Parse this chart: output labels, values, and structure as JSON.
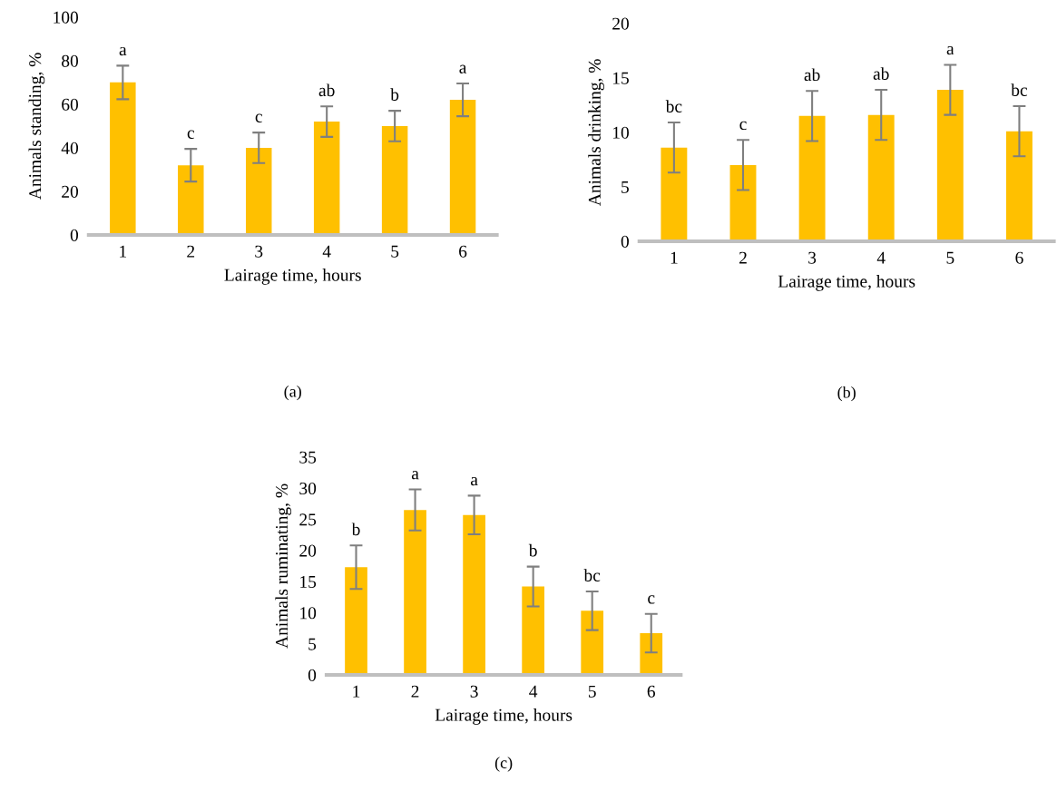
{
  "chart_data": [
    {
      "type": "bar",
      "xlabel": "Lairage time, hours",
      "ylabel": "Animals standing, %",
      "categories": [
        "1",
        "2",
        "3",
        "4",
        "5",
        "6"
      ],
      "values": [
        70,
        32,
        40,
        52,
        50,
        62
      ],
      "errors": [
        7.7,
        7.5,
        7,
        7,
        7,
        7.5
      ],
      "value_labels": [
        "a",
        "c",
        "c",
        "ab",
        "b",
        "a"
      ],
      "color": "#ffc000",
      "ylim": [
        0,
        100
      ],
      "yticks": [
        0,
        20,
        40,
        60,
        80,
        100
      ],
      "grid": false,
      "annotations": [
        "(a)"
      ]
    },
    {
      "type": "bar",
      "xlabel": "Lairage time, hours",
      "ylabel": "Animals drinking, %",
      "categories": [
        "1",
        "2",
        "3",
        "4",
        "5",
        "6"
      ],
      "values": [
        8.6,
        7.0,
        11.5,
        11.6,
        13.9,
        10.1
      ],
      "errors": [
        2.3,
        2.3,
        2.3,
        2.3,
        2.3,
        2.3
      ],
      "value_labels": [
        "bc",
        "c",
        "ab",
        "ab",
        "a",
        "bc"
      ],
      "color": "#ffc000",
      "ylim": [
        0,
        20
      ],
      "yticks": [
        0,
        5,
        10,
        15,
        20
      ],
      "grid": false,
      "annotations": [
        "(b)"
      ]
    },
    {
      "type": "bar",
      "xlabel": "Lairage time, hours",
      "ylabel": "Animals ruminating, %",
      "categories": [
        "1",
        "2",
        "3",
        "4",
        "5",
        "6"
      ],
      "values": [
        17.3,
        26.5,
        25.7,
        14.2,
        10.3,
        6.7
      ],
      "errors": [
        3.5,
        3.3,
        3.1,
        3.2,
        3.1,
        3.1
      ],
      "value_labels": [
        "b",
        "a",
        "a",
        "b",
        "bc",
        "c"
      ],
      "color": "#ffc000",
      "ylim": [
        0,
        35
      ],
      "yticks": [
        0,
        5,
        10,
        15,
        20,
        25,
        30,
        35
      ],
      "grid": false,
      "annotations": [
        "(c)"
      ]
    }
  ]
}
